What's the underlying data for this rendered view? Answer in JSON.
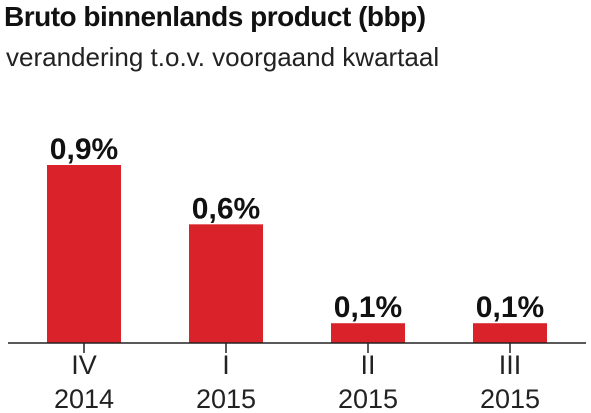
{
  "chart_data": {
    "type": "bar",
    "title": "Bruto binnenlands product (bbp)",
    "subtitle": "verandering  t.o.v. voorgaand kwartaal",
    "categories": [
      {
        "quarter": "IV",
        "year": "2014"
      },
      {
        "quarter": "I",
        "year": "2015"
      },
      {
        "quarter": "II",
        "year": "2015"
      },
      {
        "quarter": "III",
        "year": "2015"
      }
    ],
    "values": [
      0.9,
      0.6,
      0.1,
      0.1
    ],
    "value_labels": [
      "0,9%",
      "0,6%",
      "0,1%",
      "0,1%"
    ],
    "ylim": [
      0,
      0.9
    ],
    "grid": false,
    "bar_color": "#d9222a"
  }
}
